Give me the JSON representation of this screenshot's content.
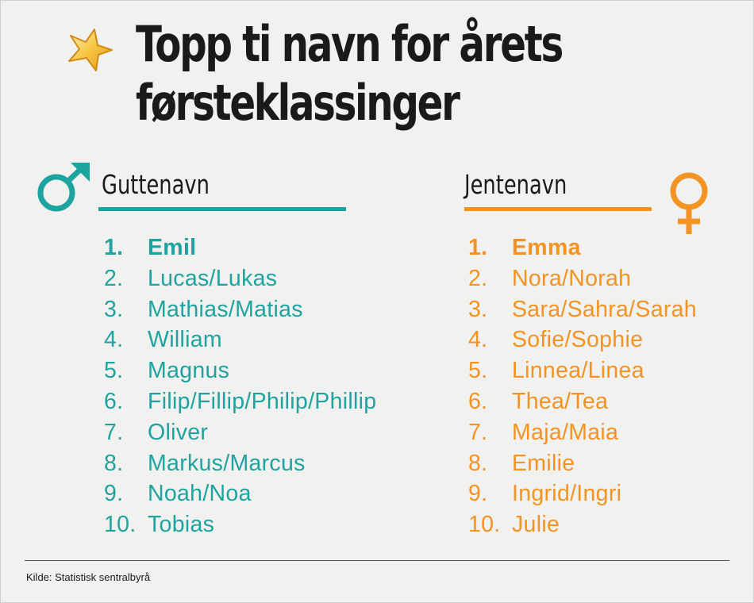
{
  "title": {
    "line1": "Topp ti navn for årets",
    "line2": "førsteklassinger"
  },
  "boys": {
    "heading": "Guttenavn",
    "color": "#1ea4a0",
    "icon": "male-symbol-icon",
    "names": [
      {
        "rank": "1.",
        "name": "Emil"
      },
      {
        "rank": "2.",
        "name": "Lucas/Lukas"
      },
      {
        "rank": "3.",
        "name": "Mathias/Matias"
      },
      {
        "rank": "4.",
        "name": "William"
      },
      {
        "rank": "5.",
        "name": "Magnus"
      },
      {
        "rank": "6.",
        "name": "Filip/Fillip/Philip/Phillip"
      },
      {
        "rank": "7.",
        "name": "Oliver"
      },
      {
        "rank": "8.",
        "name": "Markus/Marcus"
      },
      {
        "rank": "9.",
        "name": "Noah/Noa"
      },
      {
        "rank": "10.",
        "name": "Tobias"
      }
    ]
  },
  "girls": {
    "heading": "Jentenavn",
    "color": "#f39323",
    "icon": "female-symbol-icon",
    "names": [
      {
        "rank": "1.",
        "name": "Emma"
      },
      {
        "rank": "2.",
        "name": "Nora/Norah"
      },
      {
        "rank": "3.",
        "name": "Sara/Sahra/Sarah"
      },
      {
        "rank": "4.",
        "name": "Sofie/Sophie"
      },
      {
        "rank": "5.",
        "name": "Linnea/Linea"
      },
      {
        "rank": "6.",
        "name": "Thea/Tea"
      },
      {
        "rank": "7.",
        "name": "Maja/Maia"
      },
      {
        "rank": "8.",
        "name": "Emilie"
      },
      {
        "rank": "9.",
        "name": "Ingrid/Ingri"
      },
      {
        "rank": "10.",
        "name": "Julie"
      }
    ]
  },
  "source": "Kilde: Statistisk sentralbyrå",
  "decoration": {
    "star_icon": "star-icon",
    "star_color": "#f5c542"
  }
}
